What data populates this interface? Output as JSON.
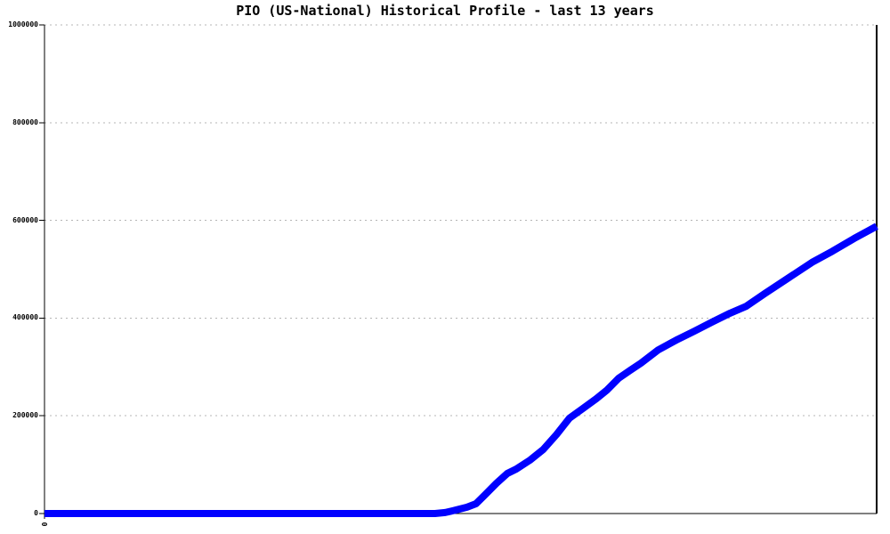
{
  "colors": {
    "background": "#ffffff",
    "line": "#0000ff",
    "grid": "#b4b4b4",
    "axis": "#000000",
    "text": "#000000"
  },
  "chart_data": {
    "type": "line",
    "title": "PIO (US-National) Historical Profile - last 13 years",
    "xlabel": "",
    "ylabel": "",
    "xlim": [
      0,
      13
    ],
    "ylim": [
      0,
      1000000
    ],
    "grid": "horizontal-dotted-gray",
    "legend_position": "none",
    "xticks": [
      {
        "value": 0,
        "label": "0"
      }
    ],
    "yticks": [
      {
        "value": 0,
        "label": "0"
      },
      {
        "value": 200000,
        "label": "200000"
      },
      {
        "value": 400000,
        "label": "400000"
      },
      {
        "value": 600000,
        "label": "600000"
      },
      {
        "value": 800000,
        "label": "800000"
      },
      {
        "value": 1000000,
        "label": "1000000"
      }
    ],
    "series": [
      {
        "name": "PIO (US-National) historical profile",
        "color": "#0000ff",
        "points": [
          [
            0,
            0
          ],
          [
            0.5,
            0
          ],
          [
            1,
            0
          ],
          [
            1.5,
            0
          ],
          [
            2,
            0
          ],
          [
            2.5,
            0
          ],
          [
            3,
            0
          ],
          [
            3.5,
            0
          ],
          [
            4,
            0
          ],
          [
            4.5,
            0
          ],
          [
            5,
            0
          ],
          [
            5.5,
            0
          ],
          [
            6,
            0
          ],
          [
            6.1,
            0
          ],
          [
            6.26,
            2000
          ],
          [
            6.42,
            7000
          ],
          [
            6.6,
            13000
          ],
          [
            6.74,
            20000
          ],
          [
            6.88,
            38000
          ],
          [
            7.06,
            62000
          ],
          [
            7.23,
            82000
          ],
          [
            7.37,
            91000
          ],
          [
            7.58,
            109000
          ],
          [
            7.79,
            131000
          ],
          [
            8.0,
            162000
          ],
          [
            8.2,
            195000
          ],
          [
            8.41,
            215000
          ],
          [
            8.62,
            235000
          ],
          [
            8.79,
            253000
          ],
          [
            8.97,
            277000
          ],
          [
            9.15,
            293000
          ],
          [
            9.32,
            308000
          ],
          [
            9.59,
            335000
          ],
          [
            9.87,
            355000
          ],
          [
            10.15,
            373000
          ],
          [
            10.43,
            392000
          ],
          [
            10.71,
            410000
          ],
          [
            10.96,
            424000
          ],
          [
            11.26,
            451000
          ],
          [
            11.61,
            481000
          ],
          [
            11.99,
            514000
          ],
          [
            12.31,
            537000
          ],
          [
            12.65,
            563000
          ],
          [
            13,
            588000
          ]
        ]
      }
    ]
  }
}
